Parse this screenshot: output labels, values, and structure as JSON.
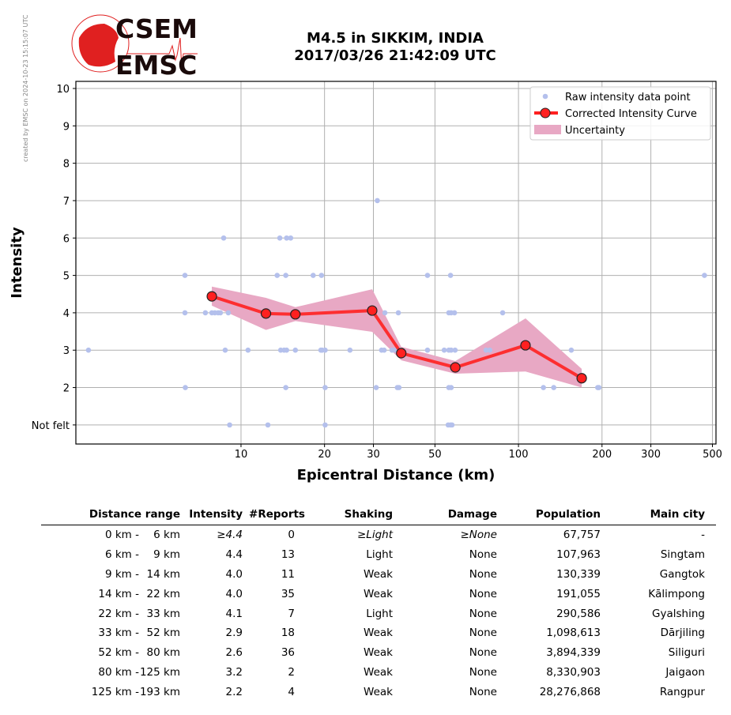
{
  "side_note": "created by EMSC on 2024-10-23 15:15:07 UTC",
  "logo": {
    "top": "CSEM",
    "bottom": "EMSC"
  },
  "title": {
    "line1": "M4.5 in SIKKIM, INDIA",
    "line2": "2017/03/26 21:42:09 UTC"
  },
  "colors": {
    "raw": "#b4c0ec",
    "curve": "#ff2020",
    "band": "#e8a8c4",
    "grid": "#b0b0b0"
  },
  "chart_data": {
    "type": "line",
    "xlabel": "Epicentral Distance (km)",
    "ylabel": "Intensity",
    "xscale": "log",
    "xlim": [
      2.54,
      515
    ],
    "ylim": [
      0.49,
      10.19
    ],
    "xticks": [
      10,
      20,
      30,
      50,
      100,
      200,
      300,
      500
    ],
    "xtick_labels": [
      "10",
      "20",
      "30",
      "50",
      "100",
      "200",
      "300",
      "500"
    ],
    "yticks": [
      1,
      2,
      3,
      4,
      5,
      6,
      7,
      8,
      9,
      10
    ],
    "ytick_labels": [
      "Not felt",
      "2",
      "3",
      "4",
      "5",
      "6",
      "7",
      "8",
      "9",
      "10"
    ],
    "grid": true,
    "legend_position": "top-right",
    "legend": [
      "Raw intensity data point",
      "Corrected Intensity Curve",
      "Uncertainty"
    ],
    "raw_points": [
      [
        9.1,
        1
      ],
      [
        12.5,
        1
      ],
      [
        20.1,
        1
      ],
      [
        55.8,
        1
      ],
      [
        56.9,
        1
      ],
      [
        57.6,
        1
      ],
      [
        6.3,
        2
      ],
      [
        14.5,
        2
      ],
      [
        20.1,
        2
      ],
      [
        30.7,
        2
      ],
      [
        36.6,
        2
      ],
      [
        37.1,
        2
      ],
      [
        56.1,
        2
      ],
      [
        57.2,
        2
      ],
      [
        123,
        2
      ],
      [
        134,
        2
      ],
      [
        193,
        2
      ],
      [
        195,
        2
      ],
      [
        2.82,
        3
      ],
      [
        8.77,
        3
      ],
      [
        10.6,
        3
      ],
      [
        13.9,
        3
      ],
      [
        14.3,
        3
      ],
      [
        14.6,
        3
      ],
      [
        15.7,
        3
      ],
      [
        19.4,
        3
      ],
      [
        19.6,
        3
      ],
      [
        20.1,
        3
      ],
      [
        24.7,
        3
      ],
      [
        32.1,
        3
      ],
      [
        32.8,
        3
      ],
      [
        35.0,
        3
      ],
      [
        35.9,
        3
      ],
      [
        37.1,
        3
      ],
      [
        47.0,
        3
      ],
      [
        54.0,
        3
      ],
      [
        56.1,
        3
      ],
      [
        57.2,
        3
      ],
      [
        59.1,
        3
      ],
      [
        76.4,
        3
      ],
      [
        78.8,
        3
      ],
      [
        155,
        3
      ],
      [
        6.28,
        4
      ],
      [
        7.44,
        4
      ],
      [
        7.85,
        4
      ],
      [
        8.05,
        4
      ],
      [
        8.27,
        4
      ],
      [
        8.43,
        4
      ],
      [
        9.0,
        4
      ],
      [
        29.7,
        4
      ],
      [
        33.0,
        4
      ],
      [
        36.9,
        4
      ],
      [
        56.1,
        4
      ],
      [
        57.2,
        4
      ],
      [
        58.8,
        4
      ],
      [
        87.7,
        4
      ],
      [
        6.28,
        5
      ],
      [
        13.5,
        5
      ],
      [
        14.5,
        5
      ],
      [
        18.2,
        5
      ],
      [
        19.5,
        5
      ],
      [
        47.0,
        5
      ],
      [
        56.9,
        5
      ],
      [
        468,
        5
      ],
      [
        8.66,
        6
      ],
      [
        13.8,
        6
      ],
      [
        14.6,
        6
      ],
      [
        15.1,
        6
      ],
      [
        31.0,
        7
      ]
    ],
    "curve": {
      "x": [
        7.85,
        12.3,
        15.7,
        29.7,
        37.8,
        59.2,
        106,
        169
      ],
      "y": [
        4.44,
        3.98,
        3.96,
        4.06,
        2.92,
        2.54,
        3.13,
        2.25
      ]
    },
    "uncertainty": {
      "upper": [
        4.7,
        4.4,
        4.15,
        4.63,
        3.09,
        2.71,
        3.85,
        2.5
      ],
      "lower": [
        4.19,
        3.54,
        3.78,
        3.49,
        2.73,
        2.37,
        2.43,
        2.0
      ]
    }
  },
  "table": {
    "headers": [
      "Distance range",
      "Intensity",
      "#Reports",
      "Shaking",
      "Damage",
      "Population",
      "Main city"
    ],
    "rows": [
      [
        "0 km -",
        "6 km",
        "≥4.4",
        "0",
        "≥Light",
        "≥None",
        "67,757",
        "-"
      ],
      [
        "6 km -",
        "9 km",
        "4.4",
        "13",
        "Light",
        "None",
        "107,963",
        "Singtam"
      ],
      [
        "9 km -",
        "14 km",
        "4.0",
        "11",
        "Weak",
        "None",
        "130,339",
        "Gangtok"
      ],
      [
        "14 km -",
        "22 km",
        "4.0",
        "35",
        "Weak",
        "None",
        "191,055",
        "Kālimpong"
      ],
      [
        "22 km -",
        "33 km",
        "4.1",
        "7",
        "Light",
        "None",
        "290,586",
        "Gyalshing"
      ],
      [
        "33 km -",
        "52 km",
        "2.9",
        "18",
        "Weak",
        "None",
        "1,098,613",
        "Dārjiling"
      ],
      [
        "52 km -",
        "80 km",
        "2.6",
        "36",
        "Weak",
        "None",
        "3,894,339",
        "Siliguri"
      ],
      [
        "80 km -",
        "125 km",
        "3.2",
        "2",
        "Weak",
        "None",
        "8,330,903",
        "Jaigaon"
      ],
      [
        "125 km -",
        "193 km",
        "2.2",
        "4",
        "Weak",
        "None",
        "28,276,868",
        "Rangpur"
      ]
    ]
  }
}
